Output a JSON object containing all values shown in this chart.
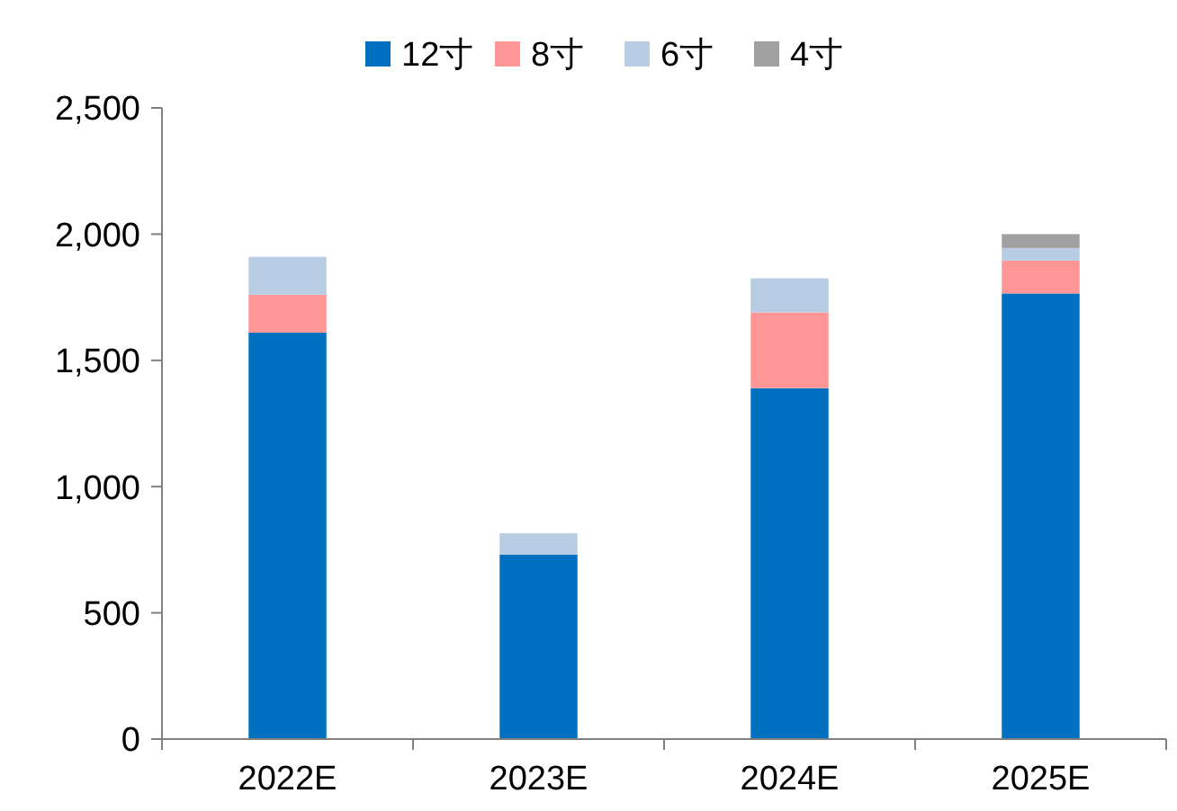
{
  "chart_data": {
    "type": "bar",
    "stacked": true,
    "categories": [
      "2022E",
      "2023E",
      "2024E",
      "2025E"
    ],
    "series": [
      {
        "name": "12寸",
        "color": "#0070c0",
        "values": [
          1610,
          730,
          1390,
          1765
        ]
      },
      {
        "name": "8寸",
        "color": "#ff9696",
        "values": [
          150,
          null,
          300,
          130
        ]
      },
      {
        "name": "6寸",
        "color": "#b8cce4",
        "values": [
          150,
          85,
          135,
          50
        ]
      },
      {
        "name": "4寸",
        "color": "#a0a0a0",
        "values": [
          null,
          null,
          null,
          55
        ]
      }
    ],
    "ylim": [
      0,
      2500
    ],
    "yticks": [
      0,
      {
        "value": 500,
        "label": "500"
      },
      {
        "value": 1000,
        "label": "1,000"
      },
      {
        "value": 1500,
        "label": "1,500"
      },
      {
        "value": 2000,
        "label": "2,000"
      },
      {
        "value": 2500,
        "label": "2,500"
      }
    ],
    "grid": false,
    "legend": "top"
  }
}
